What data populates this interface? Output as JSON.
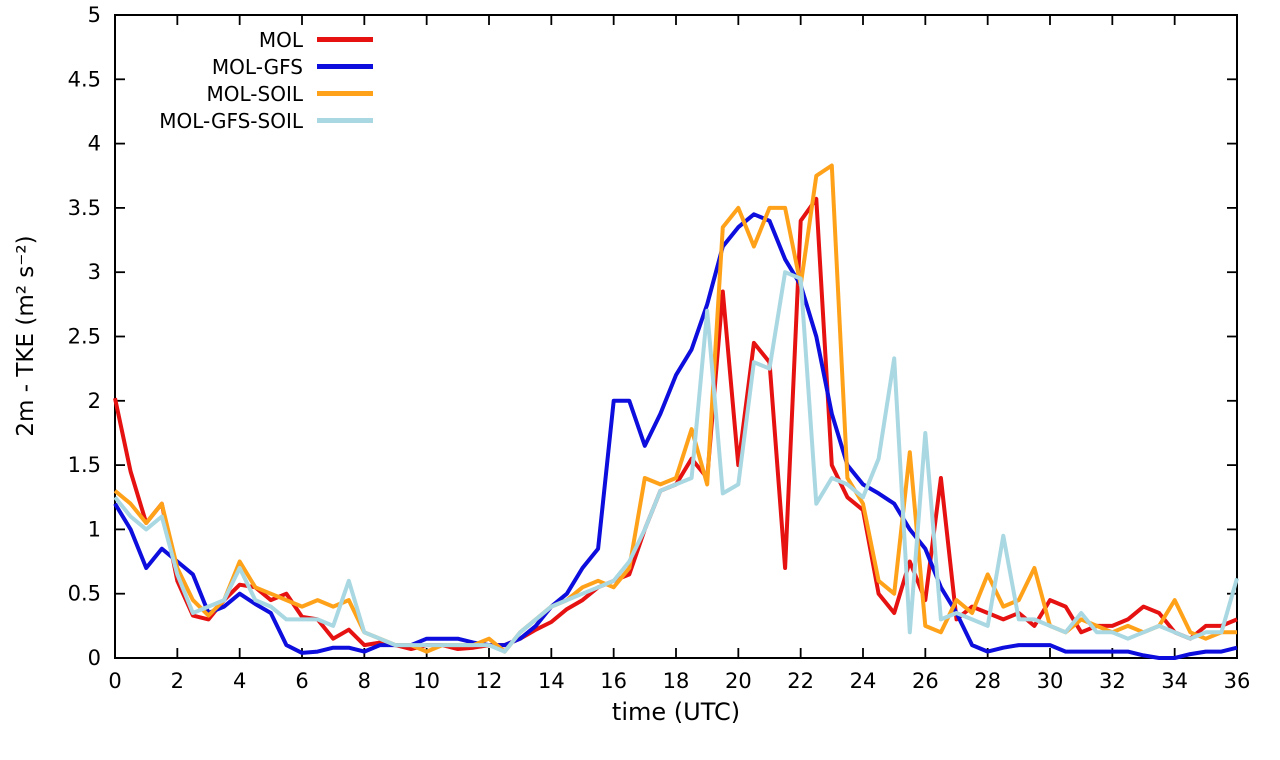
{
  "chart_data": {
    "type": "line",
    "title": "",
    "xlabel": "time (UTC)",
    "ylabel": "2m - TKE (m² s⁻²)",
    "xlim": [
      0,
      36
    ],
    "ylim": [
      0,
      5
    ],
    "grid": false,
    "legend_position": "top-left-inside",
    "background": "#ffffff",
    "xtick_values": [
      0,
      2,
      4,
      6,
      8,
      10,
      12,
      14,
      16,
      18,
      20,
      22,
      24,
      26,
      28,
      30,
      32,
      34,
      36
    ],
    "xtick_labels": [
      "0",
      "2",
      "4",
      "6",
      "8",
      "10",
      "12",
      "14",
      "16",
      "18",
      "20",
      "22",
      "24",
      "26",
      "28",
      "30",
      "32",
      "34",
      "36"
    ],
    "ytick_values": [
      0,
      0.5,
      1,
      1.5,
      2,
      2.5,
      3,
      3.5,
      4,
      4.5,
      5
    ],
    "ytick_labels": [
      "0",
      "0.5",
      "1",
      "1.5",
      "2",
      "2.5",
      "3",
      "3.5",
      "4",
      "4.5",
      "5"
    ],
    "x": [
      0,
      0.5,
      1,
      1.5,
      2,
      2.5,
      3,
      3.5,
      4,
      4.5,
      5,
      5.5,
      6,
      6.5,
      7,
      7.5,
      8,
      8.5,
      9,
      9.5,
      10,
      10.5,
      11,
      11.5,
      12,
      12.5,
      13,
      13.5,
      14,
      14.5,
      15,
      15.5,
      16,
      16.5,
      17,
      17.5,
      18,
      18.5,
      19,
      19.5,
      20,
      20.5,
      21,
      21.5,
      22,
      22.5,
      23,
      23.5,
      24,
      24.5,
      25,
      25.5,
      26,
      26.5,
      27,
      27.5,
      28,
      28.5,
      29,
      29.5,
      30,
      30.5,
      31,
      31.5,
      32,
      32.5,
      33,
      33.5,
      34,
      34.5,
      35,
      35.5,
      36
    ],
    "series": [
      {
        "name": "MOL",
        "color": "#e61212",
        "values": [
          2.02,
          1.45,
          1.05,
          1.2,
          0.6,
          0.33,
          0.3,
          0.45,
          0.57,
          0.55,
          0.45,
          0.5,
          0.32,
          0.3,
          0.15,
          0.22,
          0.1,
          0.12,
          0.1,
          0.07,
          0.1,
          0.1,
          0.07,
          0.08,
          0.1,
          0.1,
          0.15,
          0.22,
          0.28,
          0.38,
          0.45,
          0.55,
          0.6,
          0.65,
          1.0,
          1.3,
          1.35,
          1.55,
          1.4,
          2.85,
          1.5,
          2.45,
          2.3,
          0.7,
          3.4,
          3.57,
          1.5,
          1.25,
          1.15,
          0.5,
          0.35,
          0.75,
          0.45,
          1.4,
          0.3,
          0.4,
          0.35,
          0.3,
          0.35,
          0.25,
          0.45,
          0.4,
          0.2,
          0.25,
          0.25,
          0.3,
          0.4,
          0.35,
          0.2,
          0.15,
          0.25,
          0.25,
          0.3
        ]
      },
      {
        "name": "MOL-GFS",
        "color": "#0d0ddd",
        "values": [
          1.2,
          1.0,
          0.7,
          0.85,
          0.75,
          0.65,
          0.35,
          0.4,
          0.5,
          0.42,
          0.35,
          0.1,
          0.04,
          0.05,
          0.08,
          0.08,
          0.05,
          0.1,
          0.1,
          0.1,
          0.15,
          0.15,
          0.15,
          0.12,
          0.1,
          0.1,
          0.15,
          0.25,
          0.4,
          0.5,
          0.7,
          0.85,
          2.0,
          2.0,
          1.65,
          1.9,
          2.2,
          2.4,
          2.75,
          3.2,
          3.35,
          3.45,
          3.4,
          3.1,
          2.9,
          2.5,
          1.9,
          1.5,
          1.35,
          1.28,
          1.2,
          1.0,
          0.85,
          0.55,
          0.35,
          0.1,
          0.05,
          0.08,
          0.1,
          0.1,
          0.1,
          0.05,
          0.05,
          0.05,
          0.05,
          0.05,
          0.02,
          0.0,
          0.0,
          0.03,
          0.05,
          0.05,
          0.08
        ]
      },
      {
        "name": "MOL-SOIL",
        "color": "#ffa21a",
        "values": [
          1.3,
          1.2,
          1.05,
          1.2,
          0.7,
          0.45,
          0.33,
          0.45,
          0.75,
          0.55,
          0.5,
          0.45,
          0.4,
          0.45,
          0.4,
          0.45,
          0.2,
          0.15,
          0.1,
          0.1,
          0.05,
          0.1,
          0.1,
          0.1,
          0.15,
          0.05,
          0.2,
          0.3,
          0.4,
          0.45,
          0.55,
          0.6,
          0.55,
          0.7,
          1.4,
          1.35,
          1.4,
          1.78,
          1.35,
          3.35,
          3.5,
          3.2,
          3.5,
          3.5,
          2.9,
          3.75,
          3.83,
          1.4,
          1.2,
          0.6,
          0.5,
          1.6,
          0.25,
          0.2,
          0.45,
          0.35,
          0.65,
          0.4,
          0.45,
          0.7,
          0.25,
          0.2,
          0.3,
          0.25,
          0.2,
          0.25,
          0.2,
          0.25,
          0.45,
          0.2,
          0.15,
          0.2,
          0.2
        ]
      },
      {
        "name": "MOL-GFS-SOIL",
        "color": "#a9d8e2",
        "values": [
          1.25,
          1.1,
          1.0,
          1.1,
          0.65,
          0.35,
          0.4,
          0.45,
          0.7,
          0.45,
          0.4,
          0.3,
          0.3,
          0.3,
          0.25,
          0.6,
          0.2,
          0.15,
          0.1,
          0.1,
          0.1,
          0.1,
          0.1,
          0.1,
          0.1,
          0.05,
          0.2,
          0.3,
          0.4,
          0.45,
          0.5,
          0.55,
          0.6,
          0.75,
          1.0,
          1.3,
          1.35,
          1.4,
          2.7,
          1.28,
          1.35,
          2.3,
          2.25,
          3.0,
          2.95,
          1.2,
          1.4,
          1.35,
          1.25,
          1.55,
          2.33,
          0.2,
          1.75,
          0.3,
          0.35,
          0.3,
          0.25,
          0.95,
          0.3,
          0.3,
          0.25,
          0.2,
          0.35,
          0.2,
          0.2,
          0.15,
          0.2,
          0.25,
          0.2,
          0.15,
          0.2,
          0.2,
          0.62
        ]
      }
    ]
  }
}
